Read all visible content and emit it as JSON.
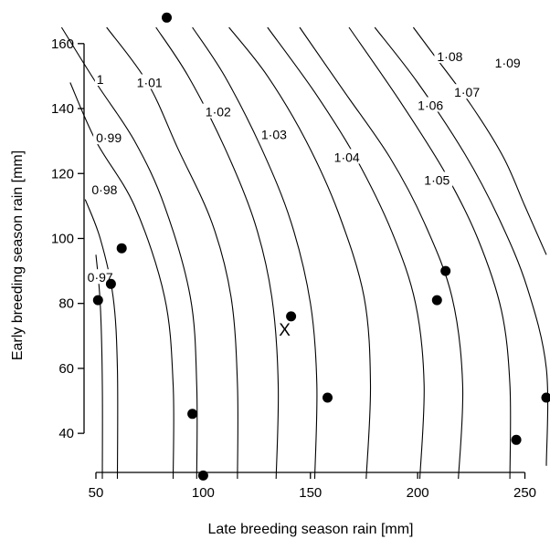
{
  "chart_data": {
    "type": "contour",
    "xlabel": "Late breeding season rain [mm]",
    "ylabel": "Early breeding season rain [mm]",
    "xlim": [
      50,
      260
    ],
    "ylim": [
      26,
      165
    ],
    "xticks": [
      50,
      100,
      150,
      200,
      250
    ],
    "yticks": [
      40,
      60,
      80,
      100,
      120,
      140,
      160
    ],
    "contours": [
      {
        "label": "0·97",
        "points": [
          [
            53,
            26
          ],
          [
            53,
            55
          ],
          [
            52,
            80
          ],
          [
            50,
            95
          ]
        ]
      },
      {
        "label": "0·98",
        "points": [
          [
            60,
            26
          ],
          [
            60,
            60
          ],
          [
            58,
            82
          ],
          [
            52,
            100
          ],
          [
            45,
            112
          ]
        ]
      },
      {
        "label": "0·99",
        "points": [
          [
            86,
            26
          ],
          [
            86,
            55
          ],
          [
            82,
            82
          ],
          [
            68,
            110
          ],
          [
            50,
            130
          ],
          [
            38,
            148
          ]
        ]
      },
      {
        "label": "1",
        "points": [
          [
            97,
            26
          ],
          [
            97,
            55
          ],
          [
            94,
            82
          ],
          [
            82,
            110
          ],
          [
            68,
            130
          ],
          [
            50,
            148
          ],
          [
            34,
            165
          ]
        ]
      },
      {
        "label": "1·01",
        "points": [
          [
            116,
            26
          ],
          [
            116,
            55
          ],
          [
            113,
            82
          ],
          [
            104,
            105
          ],
          [
            88,
            128
          ],
          [
            74,
            148
          ],
          [
            55,
            165
          ]
        ]
      },
      {
        "label": "1·02",
        "points": [
          [
            134,
            26
          ],
          [
            135,
            55
          ],
          [
            132,
            82
          ],
          [
            124,
            105
          ],
          [
            110,
            128
          ],
          [
            93,
            150
          ],
          [
            78,
            165
          ]
        ]
      },
      {
        "label": "1·03",
        "points": [
          [
            152,
            26
          ],
          [
            153,
            55
          ],
          [
            150,
            80
          ],
          [
            141,
            105
          ],
          [
            127,
            128
          ],
          [
            110,
            150
          ],
          [
            95,
            165
          ]
        ]
      },
      {
        "label": "1·04",
        "points": [
          [
            176,
            26
          ],
          [
            178,
            55
          ],
          [
            175,
            82
          ],
          [
            163,
            108
          ],
          [
            148,
            130
          ],
          [
            130,
            150
          ],
          [
            112,
            165
          ]
        ]
      },
      {
        "label": "1·05",
        "points": [
          [
            201,
            26
          ],
          [
            203,
            55
          ],
          [
            199,
            80
          ],
          [
            188,
            102
          ],
          [
            171,
            125
          ],
          [
            152,
            145
          ],
          [
            130,
            165
          ]
        ]
      },
      {
        "label": "1·06",
        "points": [
          [
            219,
            26
          ],
          [
            221,
            55
          ],
          [
            216,
            82
          ],
          [
            203,
            105
          ],
          [
            187,
            125
          ],
          [
            166,
            145
          ],
          [
            145,
            165
          ]
        ]
      },
      {
        "label": "1·07",
        "points": [
          [
            243,
            26
          ],
          [
            243,
            55
          ],
          [
            239,
            78
          ],
          [
            228,
            100
          ],
          [
            213,
            120
          ],
          [
            192,
            142
          ],
          [
            168,
            165
          ]
        ]
      },
      {
        "label": "1·08",
        "points": [
          [
            260,
            30
          ],
          [
            260,
            60
          ],
          [
            251,
            85
          ],
          [
            238,
            106
          ],
          [
            222,
            126
          ],
          [
            200,
            148
          ],
          [
            180,
            165
          ]
        ]
      },
      {
        "label": "1·09",
        "points": [
          [
            260,
            95
          ],
          [
            250,
            110
          ],
          [
            240,
            125
          ],
          [
            225,
            141
          ],
          [
            207,
            157
          ],
          [
            198,
            165
          ]
        ]
      }
    ],
    "contour_labels": [
      {
        "text": "0·97",
        "x": 52,
        "y": 88
      },
      {
        "text": "0·98",
        "x": 54,
        "y": 115
      },
      {
        "text": "0·99",
        "x": 56,
        "y": 131
      },
      {
        "text": "1",
        "x": 52,
        "y": 149
      },
      {
        "text": "1·01",
        "x": 75,
        "y": 148
      },
      {
        "text": "1·02",
        "x": 107,
        "y": 139
      },
      {
        "text": "1·03",
        "x": 133,
        "y": 132
      },
      {
        "text": "1·04",
        "x": 167,
        "y": 125
      },
      {
        "text": "1·05",
        "x": 209,
        "y": 118
      },
      {
        "text": "1·06",
        "x": 206,
        "y": 141
      },
      {
        "text": "1·07",
        "x": 223,
        "y": 145
      },
      {
        "text": "1·08",
        "x": 215,
        "y": 156
      },
      {
        "text": "1·09",
        "x": 242,
        "y": 154
      }
    ],
    "points": [
      {
        "x": 83,
        "y": 168
      },
      {
        "x": 62,
        "y": 97
      },
      {
        "x": 57,
        "y": 86
      },
      {
        "x": 51,
        "y": 81
      },
      {
        "x": 141,
        "y": 76
      },
      {
        "x": 95,
        "y": 46
      },
      {
        "x": 100,
        "y": 27
      },
      {
        "x": 158,
        "y": 51
      },
      {
        "x": 213,
        "y": 90
      },
      {
        "x": 209,
        "y": 81
      },
      {
        "x": 246,
        "y": 38
      },
      {
        "x": 260,
        "y": 51
      }
    ],
    "marker": {
      "symbol": "X",
      "x": 138,
      "y": 72
    }
  }
}
